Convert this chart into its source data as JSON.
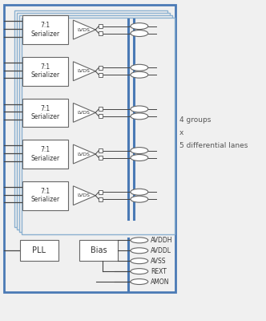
{
  "bg_color": "#f0f0f0",
  "outer_box_color": "#4a7ab5",
  "inner_box_color": "#8ab0d0",
  "text_color": "#333333",
  "line_color": "#444444",
  "num_lanes": 5,
  "lane_labels": [
    "7:1\nSerializer",
    "7:1\nSerializer",
    "7:1\nSerializer",
    "7:1\nSerializer",
    "7:1\nSerializer"
  ],
  "power_pins": [
    "AVDDH",
    "AVDDL",
    "AVSS",
    "REXT",
    "AMON"
  ],
  "annotation_text": "4 groups\nx\n5 differential lanes"
}
